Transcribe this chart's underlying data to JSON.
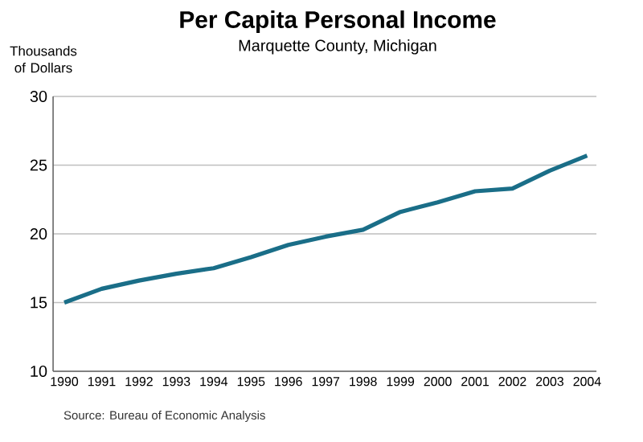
{
  "chart_data": {
    "type": "line",
    "title": "Per Capita Personal Income",
    "subtitle": "Marquette County, Michigan",
    "ylabel": "Thousands of Dollars",
    "categories": [
      "1990",
      "1991",
      "1992",
      "1993",
      "1994",
      "1995",
      "1996",
      "1997",
      "1998",
      "1999",
      "2000",
      "2001",
      "2002",
      "2003",
      "2004"
    ],
    "series": [
      {
        "color": "#1a6e88",
        "values": [
          15.0,
          16.0,
          16.6,
          17.1,
          17.5,
          18.3,
          19.2,
          19.8,
          20.3,
          21.6,
          22.3,
          23.1,
          23.3,
          24.6,
          25.7
        ]
      }
    ],
    "ylim": [
      10,
      30
    ],
    "yticks": [
      10,
      15,
      20,
      25,
      30
    ],
    "grid": "y",
    "marker": "none",
    "line_style": "solid",
    "annotations": [
      "Source: Bureau of Economic Analysis"
    ]
  }
}
